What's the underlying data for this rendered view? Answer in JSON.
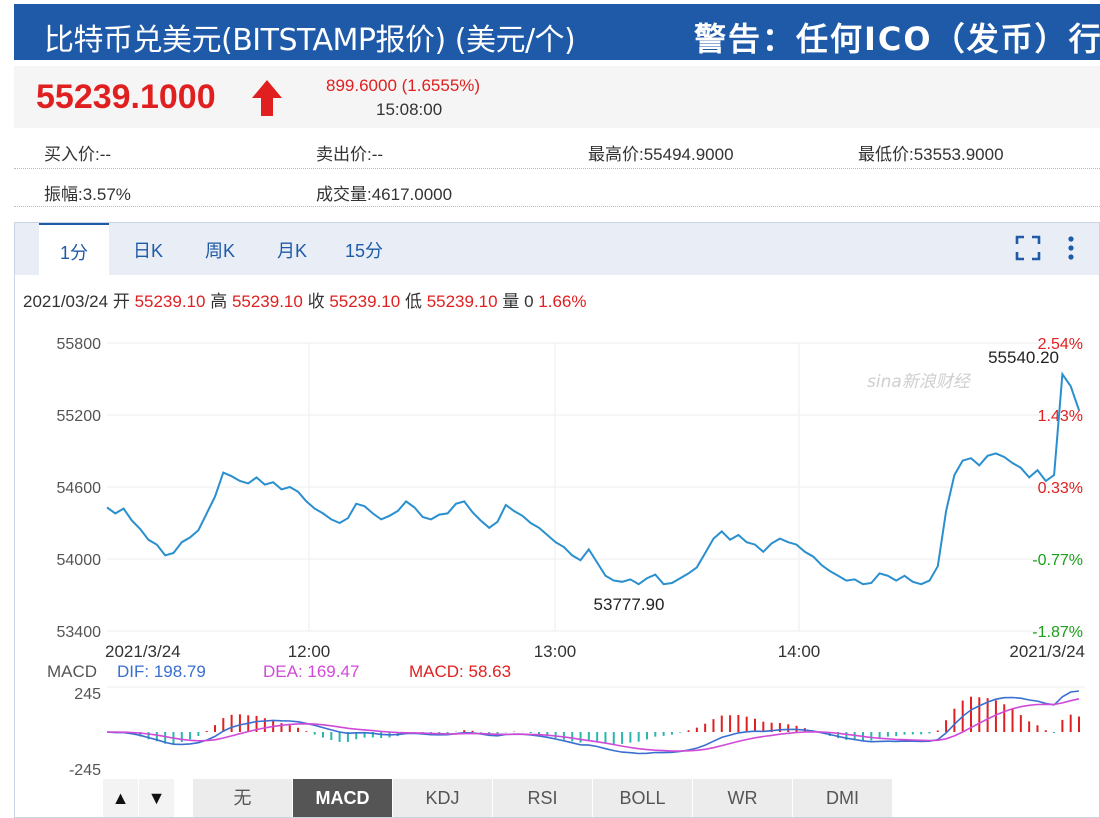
{
  "header": {
    "title": "比特币兑美元(BITSTAMP报价) (美元/个)",
    "warning": "警告：任何ICO（发币）行"
  },
  "quote": {
    "price": "55239.1000",
    "change": "899.6000 (1.6555%)",
    "time": "15:08:00"
  },
  "stats": {
    "bid": "买入价:--",
    "ask": "卖出价:--",
    "high": "最高价:55494.9000",
    "low": "最低价:53553.9000",
    "amplitude": "振幅:3.57%",
    "volume": "成交量:4617.0000"
  },
  "tabs": [
    "1分",
    "日K",
    "周K",
    "月K",
    "15分"
  ],
  "ohlc": {
    "date": "2021/03/24",
    "open_label": "开",
    "open": "55239.10",
    "high_label": "高",
    "high": "55239.10",
    "close_label": "收",
    "close": "55239.10",
    "low_label": "低",
    "low": "55239.10",
    "vol_label": "量",
    "vol": "0",
    "pct": "1.66%"
  },
  "macd": {
    "label": "MACD",
    "dif": "DIF: 198.79",
    "dea": "DEA: 169.47",
    "macd": "MACD: 58.63",
    "y_top": "245",
    "y_bottom": "-245"
  },
  "indicators": [
    "无",
    "MACD",
    "KDJ",
    "RSI",
    "BOLL",
    "WR",
    "DMI"
  ],
  "arrows": [
    "▲",
    "▼"
  ],
  "watermark": "sina新浪财经",
  "colors": {
    "header": "#1e5aa8",
    "up": "#e02020",
    "down": "#1aa01a",
    "line": "#2a8fcf",
    "dif": "#3a6fd0",
    "dea": "#d04ad8"
  },
  "chart_data": {
    "type": "line",
    "y_labels": [
      "55800",
      "55200",
      "54600",
      "54000",
      "53400"
    ],
    "pct_labels": [
      "2.54%",
      "1.43%",
      "0.33%",
      "-0.77%",
      "-1.87%"
    ],
    "x_labels": [
      "2021/3/24",
      "12:00",
      "13:00",
      "14:00",
      "2021/3/24"
    ],
    "ylim": [
      53400,
      55800
    ],
    "annotations": {
      "max": "55540.20",
      "min": "53777.90"
    },
    "grid": true,
    "values": [
      54430,
      54380,
      54420,
      54320,
      54250,
      54160,
      54120,
      54030,
      54050,
      54140,
      54180,
      54240,
      54380,
      54520,
      54720,
      54690,
      54650,
      54630,
      54680,
      54620,
      54640,
      54580,
      54600,
      54560,
      54480,
      54420,
      54380,
      54330,
      54300,
      54340,
      54460,
      54440,
      54380,
      54330,
      54360,
      54400,
      54480,
      54430,
      54350,
      54330,
      54370,
      54380,
      54460,
      54480,
      54390,
      54320,
      54260,
      54310,
      54450,
      54400,
      54360,
      54300,
      54260,
      54200,
      54140,
      54100,
      54030,
      53990,
      54080,
      53970,
      53860,
      53820,
      53810,
      53830,
      53790,
      53840,
      53870,
      53790,
      53800,
      53840,
      53880,
      53930,
      54050,
      54170,
      54230,
      54160,
      54200,
      54140,
      54120,
      54060,
      54130,
      54170,
      54140,
      54120,
      54060,
      54020,
      53950,
      53900,
      53860,
      53820,
      53830,
      53790,
      53800,
      53880,
      53860,
      53820,
      53860,
      53810,
      53790,
      53820,
      53940,
      54400,
      54700,
      54820,
      54840,
      54780,
      54860,
      54880,
      54850,
      54800,
      54760,
      54680,
      54740,
      54650,
      54700,
      55540,
      55440,
      55240
    ]
  }
}
